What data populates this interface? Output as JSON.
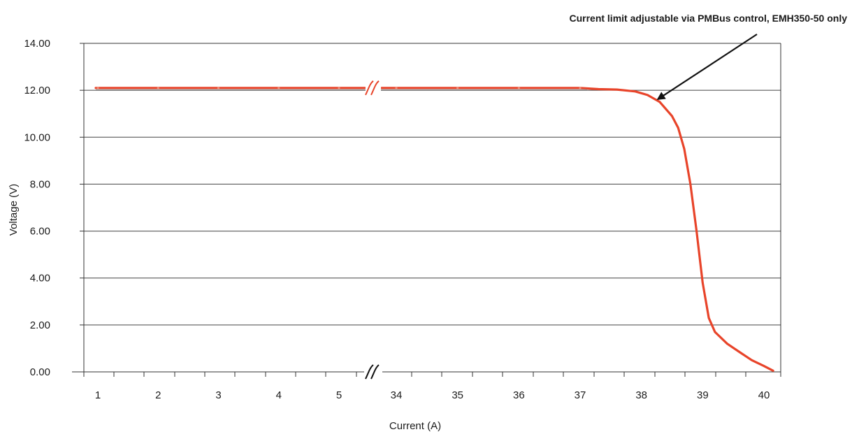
{
  "chart_data": {
    "type": "line",
    "title": "",
    "xlabel": "Current (A)",
    "ylabel": "Voltage (V)",
    "ylim": [
      0,
      14
    ],
    "yticks": [
      "0.00",
      "2.00",
      "4.00",
      "6.00",
      "8.00",
      "10.00",
      "12.00",
      "14.00"
    ],
    "xticks": [
      "1",
      "2",
      "3",
      "4",
      "5",
      "34",
      "35",
      "36",
      "37",
      "38",
      "39",
      "40"
    ],
    "x_axis_break": "between 5 and 34",
    "grid": "horizontal",
    "legend": "none",
    "annotation": {
      "text": "Current limit adjustable via PMBus control, EMH350-50 only",
      "points_to": {
        "x": 38.2,
        "y": 11.5
      }
    },
    "series": [
      {
        "color": "#e8442a",
        "points": [
          [
            1,
            12.1
          ],
          [
            2,
            12.1
          ],
          [
            3,
            12.1
          ],
          [
            4,
            12.1
          ],
          [
            5,
            12.1
          ],
          [
            34,
            12.1
          ],
          [
            35,
            12.1
          ],
          [
            36,
            12.1
          ],
          [
            37,
            12.1
          ],
          [
            37.3,
            12.05
          ],
          [
            37.6,
            12.03
          ],
          [
            37.9,
            11.95
          ],
          [
            38.1,
            11.8
          ],
          [
            38.3,
            11.5
          ],
          [
            38.5,
            10.9
          ],
          [
            38.6,
            10.4
          ],
          [
            38.7,
            9.5
          ],
          [
            38.8,
            8.0
          ],
          [
            38.9,
            6.0
          ],
          [
            39.0,
            3.8
          ],
          [
            39.1,
            2.3
          ],
          [
            39.2,
            1.7
          ],
          [
            39.4,
            1.2
          ],
          [
            39.6,
            0.85
          ],
          [
            39.8,
            0.5
          ],
          [
            40.0,
            0.25
          ],
          [
            40.15,
            0.05
          ]
        ]
      }
    ],
    "colors": {
      "series": "#e8442a",
      "grid": "#444444",
      "axis": "#333333",
      "arrow": "#111111"
    }
  }
}
